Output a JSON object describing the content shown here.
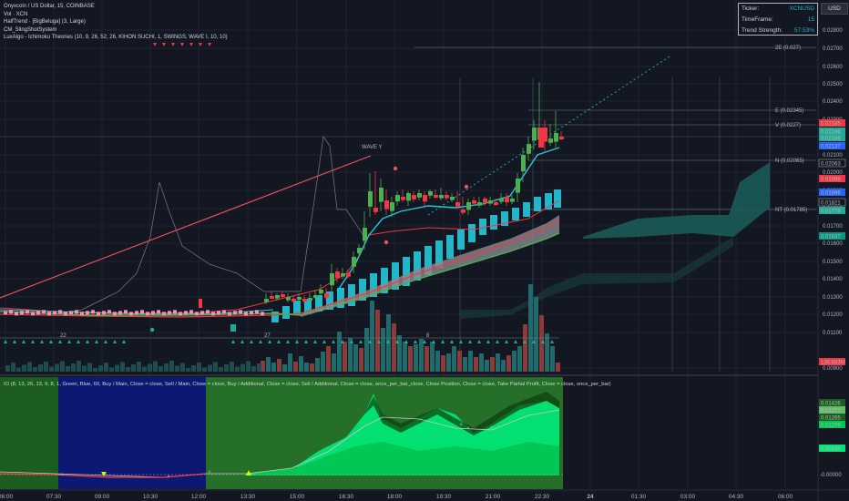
{
  "legend": {
    "symbol_line": "Onyxcoin / US Dollar, 15, COINBASE",
    "indicators": [
      "Vol · XCN",
      "HalfTrend · [BigBeluga] (3, Large)",
      "CM_SlingShotSystem",
      "LuxAlgo - Ichimoku Theories (10, 9, 26, 52, 26, KIHON SUCHI, 1, SWINGS, WAVE I, 10, 10)"
    ]
  },
  "info_box": {
    "rows": [
      {
        "label": "Ticker:",
        "value": "XCNUSD"
      },
      {
        "label": "TimeFrame:",
        "value": "15"
      },
      {
        "label": "Trend Strength:",
        "value": "57.53%"
      }
    ]
  },
  "currency_button": "USD",
  "price_axis": {
    "ticks": [
      "0.02800",
      "0.02700",
      "0.02600",
      "0.02500",
      "0.02400",
      "0.02300",
      "0.02200",
      "0.02100",
      "0.02000",
      "0.01900",
      "0.01800",
      "0.01700",
      "0.01600",
      "0.01500",
      "0.01400",
      "0.01300",
      "0.01200",
      "0.01100",
      "0.00900"
    ],
    "badges": [
      {
        "text": "0.02185",
        "color": "#f23645"
      },
      {
        "text": "0.02196",
        "color": "#22ab94"
      },
      {
        "text": "0.02186",
        "color": "#22ab94"
      },
      {
        "text": "0.02137",
        "color": "#2962ff"
      },
      {
        "text": "0.02063",
        "color": "#131722"
      },
      {
        "text": "0.01988",
        "color": "#f23645"
      },
      {
        "text": "0.01896",
        "color": "#2962ff"
      },
      {
        "text": "0.01821",
        "color": "#131722"
      },
      {
        "text": "0.01779",
        "color": "#22ab94"
      },
      {
        "text": "0.01637",
        "color": "#089981"
      },
      {
        "text": "136.683M",
        "color": "#f23645"
      }
    ]
  },
  "level_labels": [
    "2E (0.027)",
    "E (0.02345)",
    "V (0.0227)",
    "N (0.02065)",
    "NT (0.01785)"
  ],
  "wave_label": "WAVE Y",
  "cycle_labels": [
    "22",
    "27",
    "8"
  ],
  "oscillator": {
    "title": "IO (8, 13, 26, 13, 9, 8, 1, Green, Blue, 60, Buy / Main, Close = close, Sell / Main, Close = close, Buy / Additional, Close = close, Sell / Additional, Close = close, once_per_bar_close, Close Position, Close = close, Take Partial Profit, Close = close, once_per_bar)",
    "badges": [
      "0.01426",
      "0.01371",
      "0.01265",
      "0.01209",
      "0.00534"
    ],
    "zero_label": "-0.00000"
  },
  "time_axis": [
    "06:00",
    "07:30",
    "09:00",
    "10:30",
    "12:00",
    "13:30",
    "15:00",
    "16:30",
    "18:00",
    "19:30",
    "21:00",
    "22:30",
    "24",
    "01:30",
    "03:00",
    "04:30",
    "06:00"
  ],
  "colors": {
    "bull": "#4caf50",
    "bear": "#f23645",
    "cyan": "#26c6da",
    "bg": "#131722",
    "grid": "#1f2330"
  }
}
